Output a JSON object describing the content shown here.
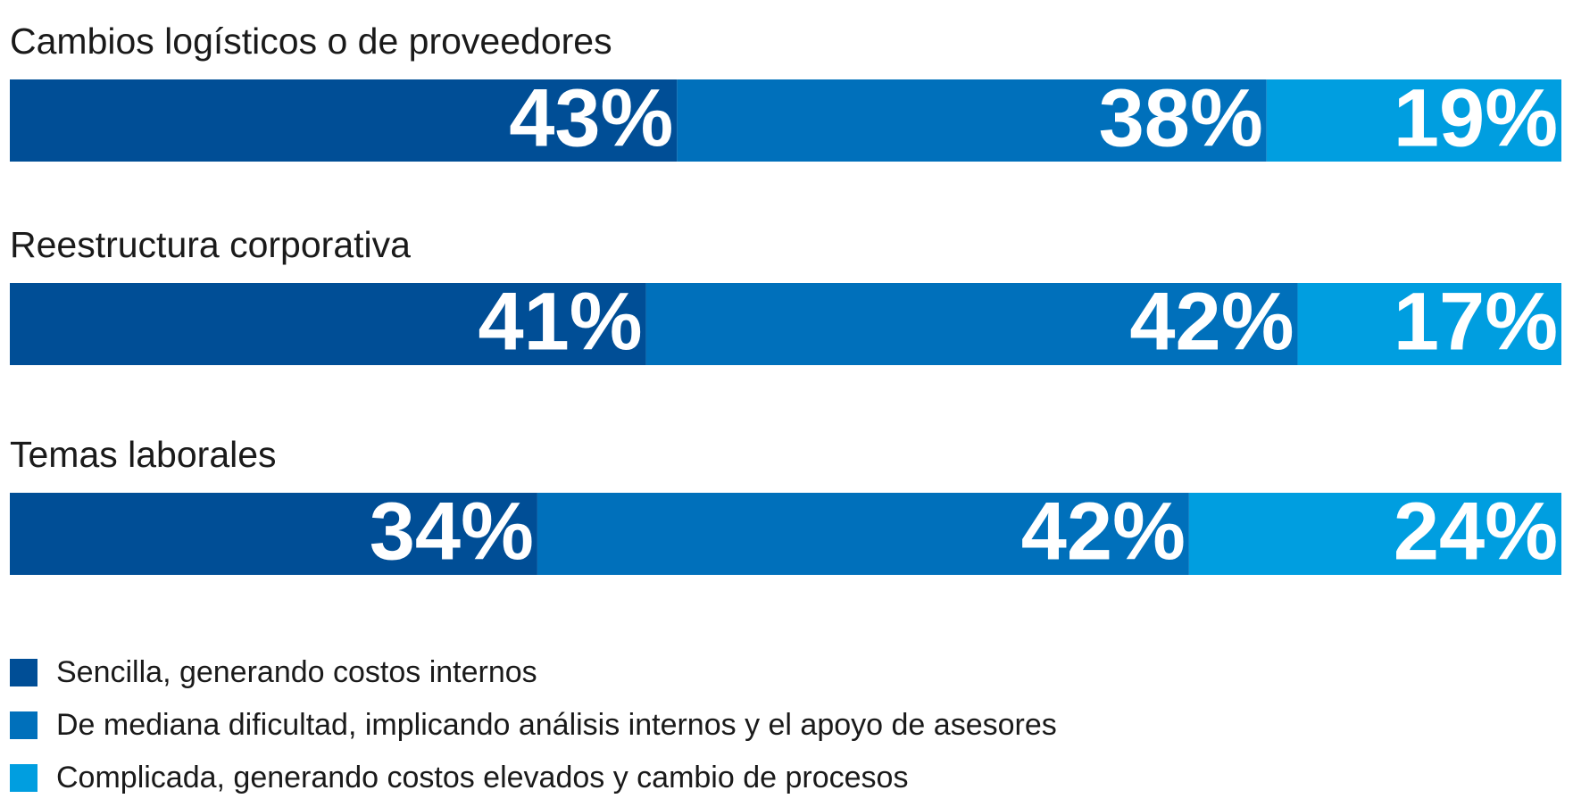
{
  "chart_data": {
    "type": "stacked-hbar",
    "categories": [
      "Cambios logísticos o de proveedores",
      "Reestructura corporativa",
      "Temas laborales"
    ],
    "series": [
      {
        "name": "Sencilla, generando costos internos",
        "color": "#004e96",
        "values": [
          43,
          41,
          34
        ],
        "value_labels": [
          "43%",
          "41%",
          "34%"
        ]
      },
      {
        "name": "De mediana dificultad, implicando análisis internos y el apoyo de asesores",
        "color": "#0070bb",
        "values": [
          38,
          42,
          42
        ],
        "value_labels": [
          "38%",
          "42%",
          "42%"
        ]
      },
      {
        "name": "Complicada, generando costos elevados y cambio de procesos",
        "color": "#009ee0",
        "values": [
          19,
          17,
          24
        ],
        "value_labels": [
          "19%",
          "17%",
          "24%"
        ]
      }
    ],
    "xlim": [
      0,
      100
    ],
    "legend": "bottom-left"
  }
}
